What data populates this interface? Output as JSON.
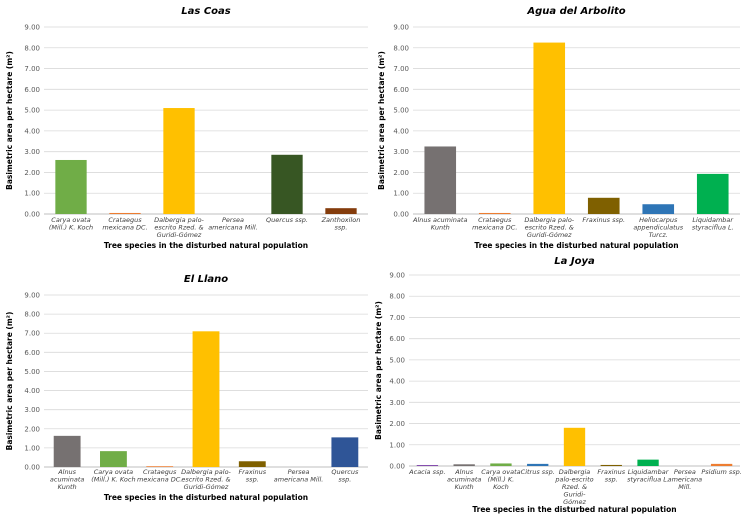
{
  "chart_data": [
    {
      "type": "bar",
      "title": "Las Coas",
      "xlabel": "Tree species in the disturbed natural population",
      "ylabel": "Basimetric area per hectare (m²)",
      "ylim": [
        0,
        9
      ],
      "yticks": [
        "0.00",
        "1.00",
        "2.00",
        "3.00",
        "4.00",
        "5.00",
        "6.00",
        "7.00",
        "8.00",
        "9.00"
      ],
      "grid": true,
      "categories": [
        [
          "Carya ovata",
          "(Mill.) K. Koch"
        ],
        [
          "Crataegus",
          "mexicana DC."
        ],
        [
          "Dalbergia palo-",
          "escrito Rzed. &",
          "Guridi-Gómez"
        ],
        [
          "Persea",
          "americana Mill."
        ],
        [
          "Quercus ssp."
        ],
        [
          "Zanthoxilon",
          "ssp."
        ]
      ],
      "values": [
        2.6,
        0.05,
        5.1,
        0.0,
        2.85,
        0.28
      ],
      "colors": [
        "#70ad47",
        "#ed7d31",
        "#ffc000",
        "#a5a5a5",
        "#375623",
        "#843c0c"
      ]
    },
    {
      "type": "bar",
      "title": "Agua del Arbolito",
      "xlabel": "Tree species in the disturbed natural population",
      "ylabel": "Basimetric area per hectare (m²)",
      "ylim": [
        0,
        9
      ],
      "yticks": [
        "0.00",
        "1.00",
        "2.00",
        "3.00",
        "4.00",
        "5.00",
        "6.00",
        "7.00",
        "8.00",
        "9.00"
      ],
      "grid": true,
      "categories": [
        [
          "Alnus acuminata",
          "Kunth"
        ],
        [
          "Crataegus",
          "mexicana DC."
        ],
        [
          "Dalbergia palo-",
          "escrito Rzed. &",
          "Guridi-Gómez"
        ],
        [
          "Fraxinus ssp."
        ],
        [
          "Heliocarpus",
          "appendiculatus",
          "Turcz."
        ],
        [
          "Liquidambar",
          "styraciflua L."
        ]
      ],
      "values": [
        3.25,
        0.05,
        8.25,
        0.78,
        0.47,
        1.93
      ],
      "colors": [
        "#767171",
        "#ed7d31",
        "#ffc000",
        "#7f6000",
        "#2e75b6",
        "#00b050"
      ]
    },
    {
      "type": "bar",
      "title": "El Llano",
      "xlabel": "Tree species in the disturbed natural population",
      "ylabel": "Basimetric area per hectare (m²)",
      "ylim": [
        0,
        9
      ],
      "yticks": [
        "0.00",
        "1.00",
        "2.00",
        "3.00",
        "4.00",
        "5.00",
        "6.00",
        "7.00",
        "8.00",
        "9.00"
      ],
      "grid": true,
      "categories": [
        [
          "Alnus",
          "acuminata",
          "Kunth"
        ],
        [
          "Carya ovata",
          "(Mill.) K. Koch"
        ],
        [
          "Crataegus",
          "mexicana DC."
        ],
        [
          "Dalbergia palo-",
          "escrito Rzed. &",
          "Guridi-Gómez"
        ],
        [
          "Fraxinus",
          "ssp."
        ],
        [
          "Persea",
          "americana Mill."
        ],
        [
          "Quercus",
          "ssp."
        ]
      ],
      "values": [
        1.63,
        0.83,
        0.04,
        7.1,
        0.3,
        0.0,
        1.55
      ],
      "colors": [
        "#767171",
        "#70ad47",
        "#ed7d31",
        "#ffc000",
        "#7f6000",
        "#a5a5a5",
        "#2f5597"
      ]
    },
    {
      "type": "bar",
      "title": "La Joya",
      "xlabel": "Tree species in the disturbed natural population",
      "ylabel": "Basimetric area per hectare (m²)",
      "ylim": [
        0,
        9
      ],
      "yticks": [
        "0.00",
        "1.00",
        "2.00",
        "3.00",
        "4.00",
        "5.00",
        "6.00",
        "7.00",
        "8.00",
        "9.00"
      ],
      "grid": true,
      "categories": [
        [
          "Acacia ssp."
        ],
        [
          "Alnus",
          "acuminata",
          "Kunth"
        ],
        [
          "Carya ovata",
          "(Mill.) K.",
          "Koch"
        ],
        [
          "Citrus ssp."
        ],
        [
          "Dalbergia",
          "palo-escrito",
          "Rzed. &",
          "Guridi-",
          "Gómez"
        ],
        [
          "Fraxinus",
          "ssp."
        ],
        [
          "Liquidambar",
          "styraciflua L."
        ],
        [
          "Persea",
          "americana",
          "Mill."
        ],
        [
          "Psidium ssp."
        ]
      ],
      "values": [
        0.04,
        0.08,
        0.12,
        0.1,
        1.8,
        0.05,
        0.3,
        0.0,
        0.1
      ],
      "colors": [
        "#7030a0",
        "#767171",
        "#70ad47",
        "#2e75b6",
        "#ffc000",
        "#7f6000",
        "#00b050",
        "#a5a5a5",
        "#ed7d31"
      ]
    }
  ]
}
